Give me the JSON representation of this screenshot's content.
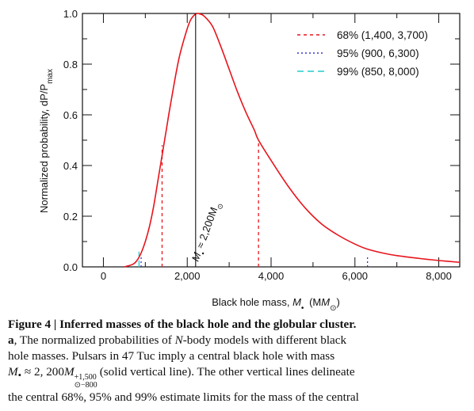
{
  "chart_data": {
    "type": "line",
    "xlabel_prefix": "Black hole mass,",
    "xlabel_var": "M",
    "xlabel_sub": "•",
    "xlabel_unit": "(M",
    "xlabel_unit_sub": "⊙",
    "xlabel_unit_close": ")",
    "ylabel": "Normalized probability, dP/P",
    "ylabel_sub": "max",
    "xlim": [
      -500,
      8500
    ],
    "ylim": [
      0,
      1.0
    ],
    "x_ticks": [
      0,
      2000,
      4000,
      6000,
      8000
    ],
    "x_tick_labels": [
      "0",
      "2,000",
      "4,000",
      "6,000",
      "8,000"
    ],
    "y_ticks": [
      0.0,
      0.2,
      0.4,
      0.6,
      0.8,
      1.0
    ],
    "y_tick_labels": [
      "0.0",
      "0.2",
      "0.4",
      "0.6",
      "0.8",
      "1.0"
    ],
    "curve": {
      "color": "#e8141c",
      "x": [
        500,
        700,
        800,
        900,
        1000,
        1100,
        1200,
        1300,
        1400,
        1500,
        1600,
        1800,
        2000,
        2100,
        2200,
        2250,
        2300,
        2400,
        2600,
        2800,
        3000,
        3200,
        3400,
        3600,
        3700,
        4000,
        4400,
        4800,
        5200,
        5600,
        6000,
        6300,
        6800,
        7200,
        7600,
        8000,
        8500
      ],
      "y": [
        0.0,
        0.01,
        0.025,
        0.055,
        0.1,
        0.16,
        0.24,
        0.34,
        0.44,
        0.54,
        0.64,
        0.82,
        0.94,
        0.98,
        0.998,
        1.0,
        0.998,
        0.99,
        0.95,
        0.87,
        0.78,
        0.69,
        0.61,
        0.54,
        0.5,
        0.42,
        0.32,
        0.235,
        0.17,
        0.125,
        0.09,
        0.07,
        0.05,
        0.04,
        0.032,
        0.025,
        0.018
      ]
    },
    "peak": {
      "x": 2200,
      "label_prefix": "M",
      "label_sub": "•",
      "label_rest": " ≈ 2,200M",
      "label_unit_sub": "⊙"
    },
    "intervals": [
      {
        "name": "68% (1,400, 3,700)",
        "style": "dashed-short",
        "color": "#e8141c",
        "low": 1400,
        "high": 3700,
        "low_y": 0.48,
        "high_y": 0.5
      },
      {
        "name": "95% (900, 6,300)",
        "style": "dotted",
        "color": "#3333cc",
        "low": 900,
        "high": 6300,
        "low_y": 0.045,
        "high_y": 0.045
      },
      {
        "name": "99% (850, 8,000)",
        "style": "dashed-long",
        "color": "#22cccc",
        "low": 850,
        "high": 8000,
        "low_y": 0.06,
        "high_y": 0.0
      }
    ]
  },
  "caption": {
    "title": "Figure 4 | Inferred masses of the black hole and the globular cluster.",
    "sub_label": "a",
    "line1_rest": ", The normalized probabilities of ",
    "line1_italic": "N",
    "line1_end": "-body models with different black",
    "line2": "hole masses. Pulsars in 47 Tuc imply a central black hole with mass",
    "line3_var": "M",
    "line3_sub": "•",
    "line3_mid": " ≈ 2, 200",
    "line3_var2": "M",
    "frac_top": "+1,500",
    "frac_bottom": "⊙−800",
    "line3_end": "(solid vertical line). The other vertical lines delineate",
    "line4": "the central 68%, 95% and 99% estimate limits for the mass of the central"
  }
}
